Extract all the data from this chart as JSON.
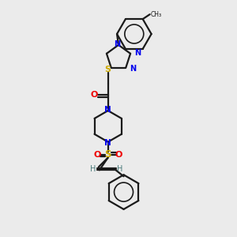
{
  "background_color": "#ebebeb",
  "bond_color": "#1a1a1a",
  "atom_colors": {
    "N": "#0000ee",
    "O": "#ee0000",
    "S": "#ccaa00",
    "C": "#1a1a1a",
    "H": "#4a7a7a"
  },
  "figsize": [
    3.0,
    3.0
  ],
  "dpi": 100
}
